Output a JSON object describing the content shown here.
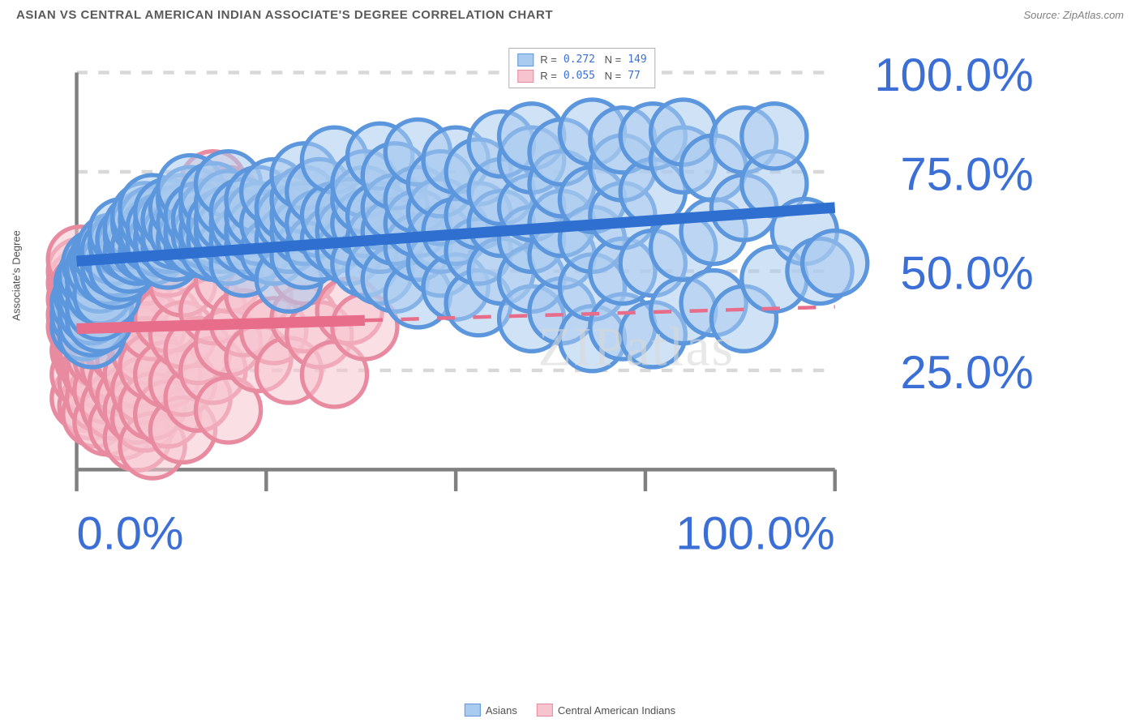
{
  "title": "ASIAN VS CENTRAL AMERICAN INDIAN ASSOCIATE'S DEGREE CORRELATION CHART",
  "source": "Source: ZipAtlas.com",
  "watermark": "ZIPatlas",
  "ylabel": "Associate's Degree",
  "chart": {
    "type": "scatter",
    "background_color": "#ffffff",
    "grid_color": "#d8d8d8",
    "axis_color": "#808080",
    "xlim": [
      0,
      100
    ],
    "ylim": [
      0,
      100
    ],
    "xtick_step": 25,
    "ytick_step": 25,
    "xtick_labels": [
      "0.0%",
      "",
      "",
      "",
      "100.0%"
    ],
    "ytick_labels": [
      "",
      "25.0%",
      "50.0%",
      "75.0%",
      "100.0%"
    ],
    "tick_label_color": "#3b6fd6",
    "tick_fontsize": 13,
    "marker_radius": 9,
    "marker_opacity": 0.55,
    "marker_stroke_width": 1.2,
    "series": [
      {
        "name": "Asians",
        "label": "Asians",
        "fill": "#a9cbef",
        "stroke": "#5c97dd",
        "line_color": "#2e6fd0",
        "line_width": 3,
        "line_dash": "none",
        "regression": {
          "intercept": 52.5,
          "slope": 0.135,
          "extent": [
            0,
            100
          ]
        },
        "R": "0.272",
        "N": "149",
        "points": [
          [
            1,
            36
          ],
          [
            1,
            39
          ],
          [
            1,
            42
          ],
          [
            1.5,
            44
          ],
          [
            1.5,
            47
          ],
          [
            2,
            34
          ],
          [
            2,
            37
          ],
          [
            2,
            40
          ],
          [
            2,
            43
          ],
          [
            2,
            46
          ],
          [
            2,
            49
          ],
          [
            2.5,
            52
          ],
          [
            3,
            38
          ],
          [
            3,
            41
          ],
          [
            3,
            45
          ],
          [
            3,
            48
          ],
          [
            3,
            51
          ],
          [
            3.5,
            53
          ],
          [
            4,
            44
          ],
          [
            4,
            50
          ],
          [
            4,
            54
          ],
          [
            4.5,
            56
          ],
          [
            5,
            49
          ],
          [
            5,
            52
          ],
          [
            5,
            55
          ],
          [
            6,
            51
          ],
          [
            6,
            57
          ],
          [
            6,
            60
          ],
          [
            7,
            53
          ],
          [
            7,
            56
          ],
          [
            7,
            58
          ],
          [
            8,
            55
          ],
          [
            8,
            59
          ],
          [
            8,
            61
          ],
          [
            9,
            56
          ],
          [
            9,
            62
          ],
          [
            9,
            64
          ],
          [
            10,
            55
          ],
          [
            10,
            58
          ],
          [
            10,
            60
          ],
          [
            10,
            63
          ],
          [
            10,
            66
          ],
          [
            11,
            57
          ],
          [
            11,
            61
          ],
          [
            12,
            54
          ],
          [
            12,
            58
          ],
          [
            12,
            62
          ],
          [
            12,
            65
          ],
          [
            13,
            56
          ],
          [
            13,
            59
          ],
          [
            13,
            63
          ],
          [
            14,
            60
          ],
          [
            14,
            66
          ],
          [
            15,
            58
          ],
          [
            15,
            62
          ],
          [
            15,
            68
          ],
          [
            15,
            71
          ],
          [
            16,
            57
          ],
          [
            16,
            60
          ],
          [
            16,
            64
          ],
          [
            17,
            59
          ],
          [
            17,
            63
          ],
          [
            18,
            56
          ],
          [
            18,
            60
          ],
          [
            18,
            65
          ],
          [
            18,
            69
          ],
          [
            19,
            58
          ],
          [
            19,
            62
          ],
          [
            20,
            55
          ],
          [
            20,
            60
          ],
          [
            20,
            63
          ],
          [
            20,
            67
          ],
          [
            20,
            72
          ],
          [
            22,
            52
          ],
          [
            22,
            58
          ],
          [
            22,
            62
          ],
          [
            22,
            65
          ],
          [
            24,
            56
          ],
          [
            24,
            60
          ],
          [
            24,
            64
          ],
          [
            24,
            68
          ],
          [
            26,
            55
          ],
          [
            26,
            62
          ],
          [
            26,
            70
          ],
          [
            28,
            48
          ],
          [
            28,
            58
          ],
          [
            28,
            63
          ],
          [
            28,
            66
          ],
          [
            30,
            54
          ],
          [
            30,
            60
          ],
          [
            30,
            64
          ],
          [
            30,
            68
          ],
          [
            30,
            74
          ],
          [
            32,
            56
          ],
          [
            32,
            62
          ],
          [
            32,
            70
          ],
          [
            34,
            58
          ],
          [
            34,
            64
          ],
          [
            34,
            78
          ],
          [
            36,
            55
          ],
          [
            36,
            60
          ],
          [
            36,
            65
          ],
          [
            38,
            52
          ],
          [
            38,
            62
          ],
          [
            38,
            68
          ],
          [
            38,
            72
          ],
          [
            40,
            50
          ],
          [
            40,
            58
          ],
          [
            40,
            64
          ],
          [
            40,
            79
          ],
          [
            42,
            48
          ],
          [
            42,
            60
          ],
          [
            42,
            66
          ],
          [
            42,
            74
          ],
          [
            45,
            44
          ],
          [
            45,
            56
          ],
          [
            45,
            62
          ],
          [
            45,
            68
          ],
          [
            45,
            80
          ],
          [
            48,
            52
          ],
          [
            48,
            58
          ],
          [
            48,
            65
          ],
          [
            48,
            72
          ],
          [
            50,
            46
          ],
          [
            50,
            60
          ],
          [
            50,
            78
          ],
          [
            53,
            42
          ],
          [
            53,
            55
          ],
          [
            53,
            64
          ],
          [
            53,
            75
          ],
          [
            56,
            50
          ],
          [
            56,
            62
          ],
          [
            56,
            70
          ],
          [
            56,
            82
          ],
          [
            60,
            38
          ],
          [
            60,
            48
          ],
          [
            60,
            58
          ],
          [
            60,
            66
          ],
          [
            60,
            78
          ],
          [
            60,
            84
          ],
          [
            64,
            40
          ],
          [
            64,
            54
          ],
          [
            64,
            62
          ],
          [
            64,
            72
          ],
          [
            64,
            80
          ],
          [
            68,
            33
          ],
          [
            68,
            46
          ],
          [
            68,
            58
          ],
          [
            68,
            68
          ],
          [
            68,
            85
          ],
          [
            72,
            36
          ],
          [
            72,
            50
          ],
          [
            72,
            64
          ],
          [
            72,
            76
          ],
          [
            72,
            83
          ],
          [
            76,
            34
          ],
          [
            76,
            52
          ],
          [
            76,
            70
          ],
          [
            76,
            84
          ],
          [
            80,
            40
          ],
          [
            80,
            56
          ],
          [
            80,
            78
          ],
          [
            80,
            85
          ],
          [
            84,
            42
          ],
          [
            84,
            60
          ],
          [
            84,
            76
          ],
          [
            88,
            38
          ],
          [
            88,
            66
          ],
          [
            88,
            83
          ],
          [
            92,
            48
          ],
          [
            92,
            72
          ],
          [
            92,
            84
          ],
          [
            96,
            60
          ],
          [
            98,
            50
          ],
          [
            100,
            52
          ]
        ]
      },
      {
        "name": "Central American Indians",
        "label": "Central American Indians",
        "fill": "#f6c4cf",
        "stroke": "#e88ba0",
        "line_color": "#e76d8b",
        "line_width": 3,
        "line_dash": "none",
        "regression": {
          "intercept": 35.5,
          "slope": 0.055,
          "extent_solid": [
            0,
            38
          ],
          "extent_dash": [
            38,
            100
          ]
        },
        "R": "0.055",
        "N": "77",
        "points": [
          [
            0.5,
            36
          ],
          [
            0.5,
            39
          ],
          [
            0.5,
            43
          ],
          [
            0.5,
            47
          ],
          [
            0.5,
            50
          ],
          [
            0.5,
            53
          ],
          [
            1,
            18
          ],
          [
            1,
            24
          ],
          [
            1,
            30
          ],
          [
            1,
            34
          ],
          [
            1,
            38
          ],
          [
            1,
            42
          ],
          [
            1,
            46
          ],
          [
            1.5,
            28
          ],
          [
            1.5,
            32
          ],
          [
            1.5,
            36
          ],
          [
            1.5,
            40
          ],
          [
            1.5,
            44
          ],
          [
            2,
            16
          ],
          [
            2,
            22
          ],
          [
            2,
            27
          ],
          [
            2,
            31
          ],
          [
            2,
            35
          ],
          [
            2,
            39
          ],
          [
            2,
            43
          ],
          [
            2.5,
            14
          ],
          [
            2.5,
            25
          ],
          [
            2.5,
            33
          ],
          [
            2.5,
            37
          ],
          [
            3,
            18
          ],
          [
            3,
            24
          ],
          [
            3,
            29
          ],
          [
            3,
            34
          ],
          [
            3,
            40
          ],
          [
            4,
            12
          ],
          [
            4,
            20
          ],
          [
            4,
            28
          ],
          [
            4,
            36
          ],
          [
            4,
            44
          ],
          [
            5,
            16
          ],
          [
            5,
            26
          ],
          [
            5,
            32
          ],
          [
            5,
            38
          ],
          [
            5,
            46
          ],
          [
            6,
            11
          ],
          [
            6,
            22
          ],
          [
            6,
            30
          ],
          [
            6,
            40
          ],
          [
            7,
            18
          ],
          [
            7,
            28
          ],
          [
            7,
            36
          ],
          [
            7,
            48
          ],
          [
            8,
            8
          ],
          [
            8,
            15
          ],
          [
            8,
            24
          ],
          [
            8,
            33
          ],
          [
            8,
            42
          ],
          [
            9,
            13
          ],
          [
            9,
            20
          ],
          [
            9,
            30
          ],
          [
            9,
            50
          ],
          [
            10,
            6
          ],
          [
            10,
            16
          ],
          [
            10,
            26
          ],
          [
            10,
            36
          ],
          [
            10,
            55
          ],
          [
            12,
            14
          ],
          [
            12,
            24
          ],
          [
            12,
            38
          ],
          [
            12,
            52
          ],
          [
            14,
            10
          ],
          [
            14,
            22
          ],
          [
            14,
            34
          ],
          [
            14,
            47
          ],
          [
            16,
            18
          ],
          [
            16,
            30
          ],
          [
            16,
            64
          ],
          [
            18,
            25
          ],
          [
            18,
            40
          ],
          [
            18,
            72
          ],
          [
            20,
            15
          ],
          [
            20,
            32
          ],
          [
            20,
            48
          ],
          [
            20,
            68
          ],
          [
            22,
            37
          ],
          [
            24,
            28
          ],
          [
            24,
            44
          ],
          [
            26,
            35
          ],
          [
            28,
            25
          ],
          [
            30,
            38
          ],
          [
            30,
            50
          ],
          [
            32,
            34
          ],
          [
            34,
            24
          ],
          [
            36,
            40
          ],
          [
            38,
            36
          ]
        ]
      }
    ]
  },
  "legend_top": [
    {
      "swatch_fill": "#a9cbef",
      "swatch_stroke": "#5c97dd",
      "R": "0.272",
      "N": "149"
    },
    {
      "swatch_fill": "#f6c4cf",
      "swatch_stroke": "#e88ba0",
      "R": "0.055",
      "N": " 77"
    }
  ],
  "legend_bottom": [
    {
      "label": "Asians",
      "swatch_fill": "#a9cbef",
      "swatch_stroke": "#5c97dd"
    },
    {
      "label": "Central American Indians",
      "swatch_fill": "#f6c4cf",
      "swatch_stroke": "#e88ba0"
    }
  ]
}
